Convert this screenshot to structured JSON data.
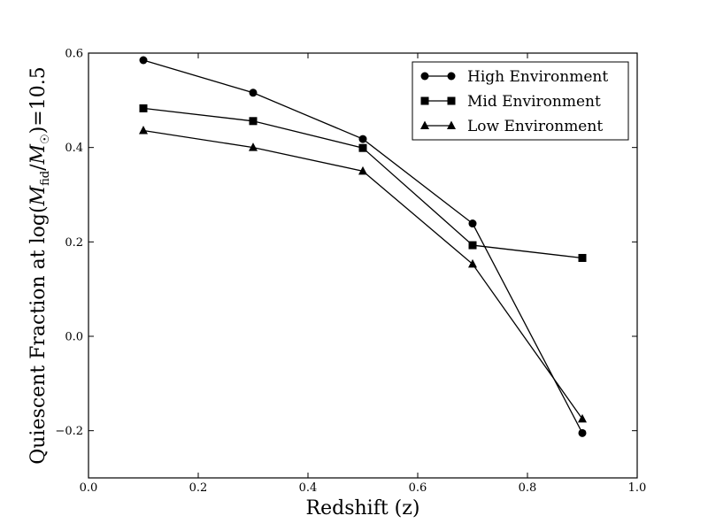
{
  "chart_data": {
    "type": "line",
    "title": "",
    "xlabel": "Redshift (z)",
    "ylabel_parts": {
      "prefix": "Quiescent Fraction at ",
      "log": "log(",
      "m1": "M",
      "sub1": "fid",
      "slash": "/",
      "m2": "M",
      "sub2": "☉",
      "suffix": ")=10.5"
    },
    "xlim": [
      0.0,
      1.0
    ],
    "ylim": [
      -0.3,
      0.6
    ],
    "xticks": [
      "0.0",
      "0.2",
      "0.4",
      "0.6",
      "0.8",
      "1.0"
    ],
    "yticks": [
      "0.6",
      "0.4",
      "0.2",
      "0.0",
      "−0.2"
    ],
    "xtick_values": [
      0.0,
      0.2,
      0.4,
      0.6,
      0.8,
      1.0
    ],
    "ytick_values": [
      0.6,
      0.4,
      0.2,
      0.0,
      -0.2
    ],
    "legend_position": "top-right",
    "grid": false,
    "x": [
      0.1,
      0.3,
      0.5,
      0.7,
      0.9
    ],
    "series": [
      {
        "name": "High Environment",
        "marker": "circle",
        "color": "#000000",
        "values": [
          0.585,
          0.516,
          0.418,
          0.239,
          -0.205
        ]
      },
      {
        "name": "Mid Environment",
        "marker": "square",
        "color": "#000000",
        "values": [
          0.483,
          0.456,
          0.399,
          0.193,
          0.166
        ]
      },
      {
        "name": "Low Environment",
        "marker": "triangle",
        "color": "#000000",
        "values": [
          0.436,
          0.4,
          0.35,
          0.153,
          -0.175
        ]
      }
    ]
  }
}
